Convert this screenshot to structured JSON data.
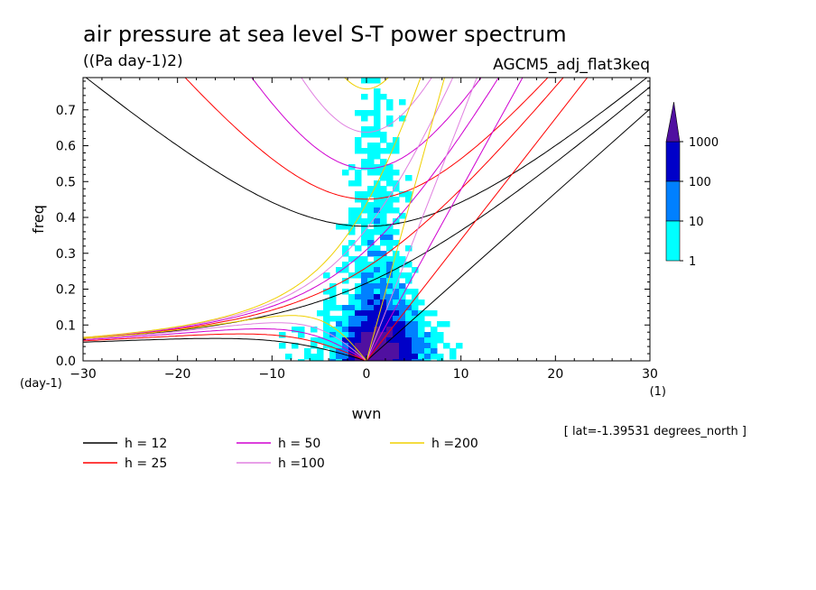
{
  "chart_data": {
    "type": "heatmap",
    "title": "air pressure at sea level S-T power spectrum",
    "units": "((Pa day-1)2)",
    "model": "AGCM5_adj_flat3keq",
    "xlabel": "wvn",
    "x_unit": "(1)",
    "ylabel": "freq",
    "y_unit": "(day-1)",
    "xlim": [
      -30,
      30
    ],
    "ylim": [
      0,
      0.79
    ],
    "xticks": [
      -30,
      -20,
      -10,
      0,
      10,
      20,
      30
    ],
    "yticks": [
      0.0,
      0.1,
      0.2,
      0.3,
      0.4,
      0.5,
      0.6,
      0.7
    ],
    "latitude_note": "[ lat=-1.39531 degrees_north ]",
    "colorbar": {
      "levels": [
        "1",
        "10",
        "100",
        "1000"
      ],
      "colors": [
        "#00ffff",
        "#0080ff",
        "#0000c8",
        "#5010a0"
      ]
    },
    "dispersion_curves": [
      {
        "label": "h = 12",
        "h": 12,
        "color": "#000000"
      },
      {
        "label": "h = 25",
        "h": 25,
        "color": "#ff0000"
      },
      {
        "label": "h = 50",
        "h": 50,
        "color": "#d000d0"
      },
      {
        "label": "h =100",
        "h": 100,
        "color": "#e080e0"
      },
      {
        "label": "h =200",
        "h": 200,
        "color": "#f0d000"
      }
    ]
  }
}
